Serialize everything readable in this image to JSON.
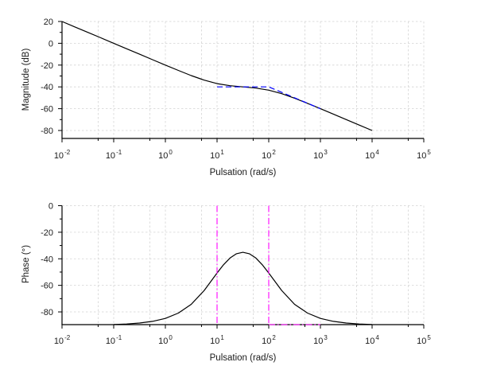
{
  "figure": {
    "title": "",
    "background": "#ffffff"
  },
  "colors": {
    "curve": "#000000",
    "asymptote": "#0000ff",
    "marker": "#ff00ff",
    "grid": "#d4d4d4",
    "axis": "#000000",
    "text": "#1a1a1a"
  },
  "chart_data": [
    {
      "type": "line",
      "id": "magnitude",
      "title": "",
      "xlabel": "Pulsation (rad/s)",
      "ylabel": "Magnitude (dB)",
      "x_scale": "log",
      "x_log_range": [
        -2,
        5
      ],
      "y_range": [
        -87,
        20
      ],
      "x_major_ticks": [
        -2,
        -1,
        0,
        1,
        2,
        3,
        4,
        5
      ],
      "x_major_tick_labels": [
        "10-2",
        "10-1",
        "100",
        "101",
        "102",
        "103",
        "104",
        "105"
      ],
      "x_tick_base": "10",
      "x_tick_exponents": [
        "-2",
        "-1",
        "0",
        "1",
        "2",
        "3",
        "4",
        "5"
      ],
      "x_minor_ticks": [
        -1.301,
        -0.301,
        0.699,
        1.699,
        2.699,
        3.699,
        4.699
      ],
      "y_major_ticks": [
        20,
        0,
        -20,
        -40,
        -60,
        -80
      ],
      "y_major_tick_labels": [
        "20",
        "0",
        "-20",
        "-40",
        "-60",
        "-80"
      ],
      "y_minor_ticks": [
        10,
        -10,
        -30,
        -50,
        -70
      ],
      "y_gridlines": [
        20,
        0,
        -20,
        -40,
        -60,
        -80
      ],
      "grid": true,
      "legend": null,
      "series": [
        {
          "name": "magnitude-response",
          "color_key": "curve",
          "style": "solid",
          "width": 1.2,
          "points": [
            [
              -2,
              20
            ],
            [
              -1.75,
              15
            ],
            [
              -1.5,
              10
            ],
            [
              -1.25,
              5
            ],
            [
              -1,
              0
            ],
            [
              -0.75,
              -5
            ],
            [
              -0.5,
              -10
            ],
            [
              -0.25,
              -15
            ],
            [
              0,
              -20
            ],
            [
              0.25,
              -24.9
            ],
            [
              0.5,
              -29.6
            ],
            [
              0.75,
              -33.8
            ],
            [
              1,
              -37
            ],
            [
              1.25,
              -38.9
            ],
            [
              1.5,
              -40
            ],
            [
              1.75,
              -41.1
            ],
            [
              2,
              -43
            ],
            [
              2.25,
              -46.2
            ],
            [
              2.5,
              -50.4
            ],
            [
              2.75,
              -55.1
            ],
            [
              3,
              -60
            ],
            [
              3.25,
              -65
            ],
            [
              3.5,
              -70
            ],
            [
              3.75,
              -75
            ],
            [
              4,
              -80
            ]
          ]
        },
        {
          "name": "asymptotic-approximation",
          "color_key": "asymptote",
          "style": "dashed",
          "width": 1.2,
          "points": [
            [
              1,
              -40
            ],
            [
              2,
              -40
            ],
            [
              3,
              -60
            ]
          ]
        }
      ]
    },
    {
      "type": "line",
      "id": "phase",
      "title": "",
      "xlabel": "Pulsation (rad/s)",
      "ylabel": "Phase (°)",
      "x_scale": "log",
      "x_log_range": [
        -2,
        5
      ],
      "y_range": [
        -89.6,
        0
      ],
      "x_major_ticks": [
        -2,
        -1,
        0,
        1,
        2,
        3,
        4,
        5
      ],
      "x_major_tick_labels": [
        "10-2",
        "10-1",
        "100",
        "101",
        "102",
        "103",
        "104",
        "105"
      ],
      "x_tick_base": "10",
      "x_tick_exponents": [
        "-2",
        "-1",
        "0",
        "1",
        "2",
        "3",
        "4",
        "5"
      ],
      "x_minor_ticks": [
        -1.301,
        -0.301,
        0.699,
        1.699,
        2.699,
        3.699,
        4.699
      ],
      "y_major_ticks": [
        0,
        -20,
        -40,
        -60,
        -80
      ],
      "y_major_tick_labels": [
        "0",
        "-20",
        "-40",
        "-60",
        "-80"
      ],
      "y_minor_ticks": [
        -10,
        -30,
        -50,
        -70
      ],
      "y_gridlines": [
        0,
        -20,
        -40,
        -60,
        -80
      ],
      "grid": true,
      "legend": null,
      "series": [
        {
          "name": "phase-response",
          "color_key": "curve",
          "style": "solid",
          "width": 1.2,
          "points": [
            [
              -1,
              -89.5
            ],
            [
              -0.75,
              -89.1
            ],
            [
              -0.5,
              -88.4
            ],
            [
              -0.25,
              -87.1
            ],
            [
              0,
              -84.9
            ],
            [
              0.25,
              -80.9
            ],
            [
              0.5,
              -74.3
            ],
            [
              0.75,
              -63.9
            ],
            [
              1,
              -50.7
            ],
            [
              1.125,
              -44.5
            ],
            [
              1.25,
              -39.4
            ],
            [
              1.375,
              -36.2
            ],
            [
              1.5,
              -35.1
            ],
            [
              1.625,
              -36.2
            ],
            [
              1.75,
              -39.4
            ],
            [
              1.875,
              -44.5
            ],
            [
              2,
              -50.7
            ],
            [
              2.25,
              -63.9
            ],
            [
              2.5,
              -74.3
            ],
            [
              2.75,
              -80.9
            ],
            [
              3,
              -84.9
            ],
            [
              3.25,
              -87.1
            ],
            [
              3.5,
              -88.4
            ],
            [
              3.75,
              -89.1
            ],
            [
              4,
              -89.5
            ]
          ]
        },
        {
          "name": "cutoff-line-w10",
          "color_key": "marker",
          "style": "dashdot",
          "width": 1.1,
          "points": [
            [
              1,
              0
            ],
            [
              1,
              -89.6
            ]
          ]
        },
        {
          "name": "cutoff-line-w100",
          "color_key": "marker",
          "style": "dashdot",
          "width": 1.1,
          "points": [
            [
              2,
              0
            ],
            [
              2,
              -89.6
            ]
          ]
        },
        {
          "name": "phase-floor-segment",
          "color_key": "marker",
          "style": "dashdot",
          "width": 1.1,
          "points": [
            [
              2,
              -89.6
            ],
            [
              3,
              -89.6
            ]
          ]
        }
      ]
    }
  ]
}
